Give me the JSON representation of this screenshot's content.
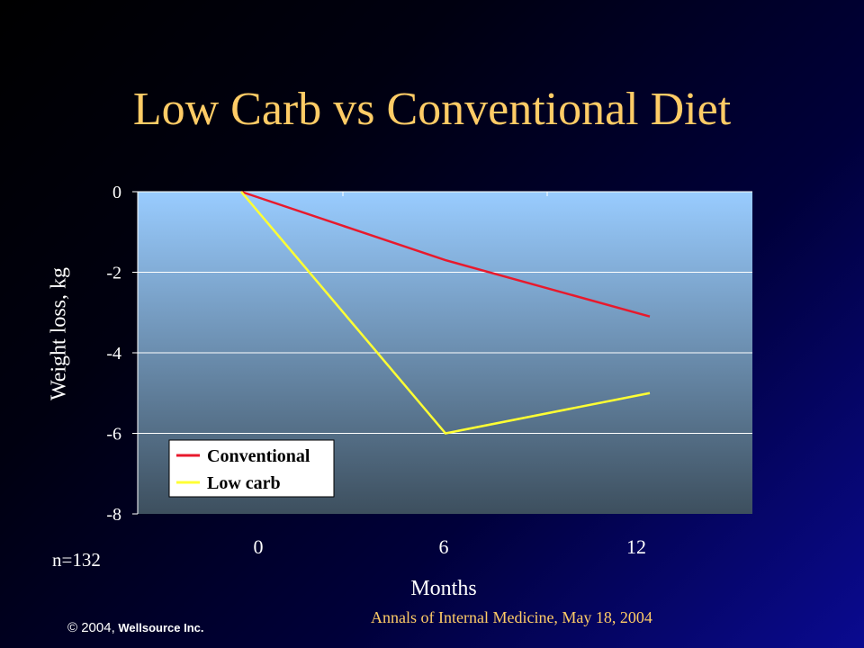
{
  "slide": {
    "title": "Low Carb vs Conventional Diet",
    "n_label": "n=132",
    "source": "Annals of Internal Medicine, May 18, 2004",
    "copyright_year": "© 2004,",
    "copyright_owner": "Wellsource Inc."
  },
  "chart_data": {
    "type": "line",
    "title": "",
    "xlabel": "Months",
    "ylabel": "Weight loss, kg",
    "x": [
      0,
      6,
      12
    ],
    "xticks": [
      "0",
      "6",
      "12"
    ],
    "yticks": [
      "0",
      "-2",
      "-4",
      "-6",
      "-8"
    ],
    "ylim": [
      -8,
      0
    ],
    "grid": true,
    "legend_position": "bottom-left",
    "series": [
      {
        "name": "Conventional",
        "values": [
          0,
          -1.7,
          -3.1
        ],
        "color": "#e8192c"
      },
      {
        "name": "Low carb",
        "values": [
          0,
          -6.0,
          -5.0
        ],
        "color": "#ffff33"
      }
    ],
    "colors": {
      "plot_top": "#99ccff",
      "plot_bottom": "#3d4f5e",
      "title": "#ffcc66",
      "text": "#ffffff"
    }
  }
}
